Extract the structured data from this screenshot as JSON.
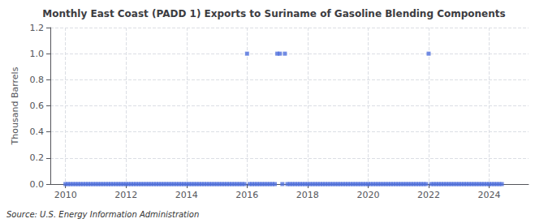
{
  "chart_data": {
    "type": "scatter",
    "title": "Monthly East Coast (PADD 1) Exports to Suriname of Gasoline Blending Components",
    "ylabel": "Thousand Barrels",
    "annotation": "Source: U.S. Energy Information Administration",
    "marker": "square",
    "grid": true,
    "xlim": [
      2009.5,
      2025.3
    ],
    "xticks": [
      2010,
      2012,
      2014,
      2016,
      2018,
      2020,
      2022,
      2024
    ],
    "ylim": [
      0.0,
      1.2
    ],
    "yticks": [
      {
        "value": 0.0,
        "label": "0.0"
      },
      0.2,
      0.4,
      0.6,
      0.8,
      {
        "value": 1.0,
        "label": "1.0"
      },
      1.2
    ],
    "x": [
      2010.0,
      2010.083,
      2010.167,
      2010.25,
      2010.333,
      2010.417,
      2010.5,
      2010.583,
      2010.667,
      2010.75,
      2010.833,
      2010.917,
      2011.0,
      2011.083,
      2011.167,
      2011.25,
      2011.333,
      2011.417,
      2011.5,
      2011.583,
      2011.667,
      2011.75,
      2011.833,
      2011.917,
      2012.0,
      2012.083,
      2012.167,
      2012.25,
      2012.333,
      2012.417,
      2012.5,
      2012.583,
      2012.667,
      2012.75,
      2012.833,
      2012.917,
      2013.0,
      2013.083,
      2013.167,
      2013.25,
      2013.333,
      2013.417,
      2013.5,
      2013.583,
      2013.667,
      2013.75,
      2013.833,
      2013.917,
      2014.0,
      2014.083,
      2014.167,
      2014.25,
      2014.333,
      2014.417,
      2014.5,
      2014.583,
      2014.667,
      2014.75,
      2014.833,
      2014.917,
      2015.0,
      2015.083,
      2015.167,
      2015.25,
      2015.333,
      2015.417,
      2015.5,
      2015.583,
      2015.667,
      2015.75,
      2015.833,
      2015.917,
      2016.0,
      2016.083,
      2016.167,
      2016.25,
      2016.333,
      2016.417,
      2016.5,
      2016.583,
      2016.667,
      2016.75,
      2016.833,
      2016.917,
      2017.0,
      2017.083,
      2017.167,
      2017.25,
      2017.333,
      2017.417,
      2017.5,
      2017.583,
      2017.667,
      2017.75,
      2017.833,
      2017.917,
      2018.0,
      2018.083,
      2018.167,
      2018.25,
      2018.333,
      2018.417,
      2018.5,
      2018.583,
      2018.667,
      2018.75,
      2018.833,
      2018.917,
      2019.0,
      2019.083,
      2019.167,
      2019.25,
      2019.333,
      2019.417,
      2019.5,
      2019.583,
      2019.667,
      2019.75,
      2019.833,
      2019.917,
      2020.0,
      2020.083,
      2020.167,
      2020.25,
      2020.333,
      2020.417,
      2020.5,
      2020.583,
      2020.667,
      2020.75,
      2020.833,
      2020.917,
      2021.0,
      2021.083,
      2021.167,
      2021.25,
      2021.333,
      2021.417,
      2021.5,
      2021.583,
      2021.667,
      2021.75,
      2021.833,
      2021.917,
      2022.0,
      2022.083,
      2022.167,
      2022.25,
      2022.333,
      2022.417,
      2022.5,
      2022.583,
      2022.667,
      2022.75,
      2022.833,
      2022.917,
      2023.0,
      2023.083,
      2023.167,
      2023.25,
      2023.333,
      2023.417,
      2023.5,
      2023.583,
      2023.667,
      2023.75,
      2023.833,
      2023.917,
      2024.0,
      2024.083,
      2024.167,
      2024.25,
      2024.333,
      2024.417
    ],
    "values": [
      0.0,
      0.0,
      0.0,
      0.0,
      0.0,
      0.0,
      0.0,
      0.0,
      0.0,
      0.0,
      0.0,
      0.0,
      0.0,
      0.0,
      0.0,
      0.0,
      0.0,
      0.0,
      0.0,
      0.0,
      0.0,
      0.0,
      0.0,
      0.0,
      0.0,
      0.0,
      0.0,
      0.0,
      0.0,
      0.0,
      0.0,
      0.0,
      0.0,
      0.0,
      0.0,
      0.0,
      0.0,
      0.0,
      0.0,
      0.0,
      0.0,
      0.0,
      0.0,
      0.0,
      0.0,
      0.0,
      0.0,
      0.0,
      0.0,
      0.0,
      0.0,
      0.0,
      0.0,
      0.0,
      0.0,
      0.0,
      0.0,
      0.0,
      0.0,
      0.0,
      0.0,
      0.0,
      0.0,
      0.0,
      0.0,
      0.0,
      0.0,
      0.0,
      0.0,
      0.0,
      0.0,
      0.0,
      1.0,
      0.0,
      0.0,
      0.0,
      0.0,
      0.0,
      0.0,
      0.0,
      0.0,
      0.0,
      0.0,
      0.0,
      1.0,
      1.0,
      0.0,
      1.0,
      0.0,
      0.0,
      0.0,
      0.0,
      0.0,
      0.0,
      0.0,
      0.0,
      0.0,
      0.0,
      0.0,
      0.0,
      0.0,
      0.0,
      0.0,
      0.0,
      0.0,
      0.0,
      0.0,
      0.0,
      0.0,
      0.0,
      0.0,
      0.0,
      0.0,
      0.0,
      0.0,
      0.0,
      0.0,
      0.0,
      0.0,
      0.0,
      0.0,
      0.0,
      0.0,
      0.0,
      0.0,
      0.0,
      0.0,
      0.0,
      0.0,
      0.0,
      0.0,
      0.0,
      0.0,
      0.0,
      0.0,
      0.0,
      0.0,
      0.0,
      0.0,
      0.0,
      0.0,
      0.0,
      0.0,
      0.0,
      1.0,
      0.0,
      0.0,
      0.0,
      0.0,
      0.0,
      0.0,
      0.0,
      0.0,
      0.0,
      0.0,
      0.0,
      0.0,
      0.0,
      0.0,
      0.0,
      0.0,
      0.0,
      0.0,
      0.0,
      0.0,
      0.0,
      0.0,
      0.0,
      0.0,
      0.0,
      0.0,
      0.0,
      0.0,
      0.0
    ]
  }
}
